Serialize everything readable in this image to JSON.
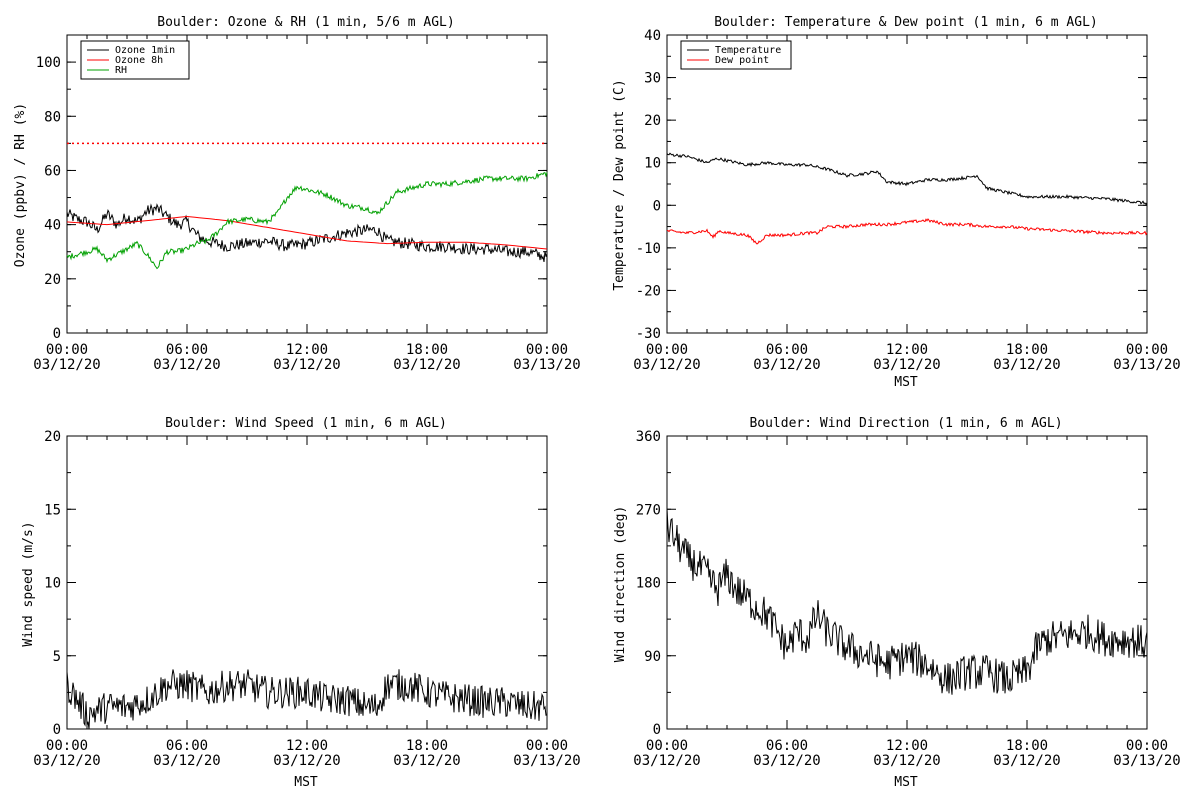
{
  "chart_data": [
    {
      "id": "ozone-rh",
      "type": "line",
      "title": "Boulder: Ozone & RH (1 min, 5/6 m AGL)",
      "ylabel": "Ozone (ppbv) / RH (%)",
      "xlabel": "",
      "ylim": [
        0,
        110
      ],
      "yticks": [
        0,
        20,
        40,
        60,
        80,
        100
      ],
      "xtick_labels": [
        [
          "00:00",
          "03/12/20"
        ],
        [
          "06:00",
          "03/12/20"
        ],
        [
          "12:00",
          "03/12/20"
        ],
        [
          "18:00",
          "03/12/20"
        ],
        [
          "00:00",
          "03/13/20"
        ]
      ],
      "x_hours": [
        0,
        6,
        12,
        18,
        24
      ],
      "grid": false,
      "legend": {
        "placement": "top-left",
        "entries": [
          "Ozone 1min",
          "Ozone 8h",
          "RH"
        ]
      },
      "threshold": {
        "value": 70,
        "color": "#ff0000",
        "style": "dotted"
      },
      "series": [
        {
          "name": "Ozone 1min",
          "color": "#000000",
          "noise": 2.2,
          "x": [
            0,
            0.5,
            1,
            1.5,
            2,
            2.5,
            3,
            3.5,
            4,
            4.5,
            5,
            5.5,
            6,
            6.5,
            7,
            7.5,
            8,
            9,
            10,
            11,
            12,
            13,
            14,
            15,
            15.5,
            16,
            17,
            18,
            19,
            20,
            21,
            22,
            23,
            24
          ],
          "y": [
            44,
            42,
            41,
            38,
            44,
            40,
            43,
            41,
            45,
            46,
            43,
            40,
            41,
            36,
            34,
            33,
            32,
            33,
            34,
            32,
            33,
            35,
            37,
            38,
            38,
            34,
            33,
            32,
            32,
            31,
            31,
            30,
            30,
            28
          ]
        },
        {
          "name": "Ozone 8h",
          "color": "#ff0000",
          "noise": 0,
          "x": [
            0,
            2,
            4,
            6,
            8,
            10,
            12,
            14,
            16,
            18,
            20,
            22,
            24
          ],
          "y": [
            41,
            40,
            41.5,
            43,
            41.5,
            39,
            36.5,
            34,
            33,
            33.5,
            33.5,
            32.5,
            31
          ]
        },
        {
          "name": "RH",
          "color": "#00a000",
          "noise": 1.0,
          "x": [
            0,
            0.5,
            1,
            1.5,
            2,
            2.5,
            3,
            3.5,
            4,
            4.5,
            5,
            5.5,
            6,
            6.5,
            7,
            7.5,
            8,
            9,
            10,
            10.5,
            11,
            11.5,
            12,
            13,
            14,
            15,
            15.5,
            16,
            16.5,
            17,
            18,
            19,
            20,
            21,
            22,
            23,
            23.5,
            24
          ],
          "y": [
            28,
            29,
            30,
            31,
            27,
            29,
            31,
            33,
            29,
            24,
            30,
            30,
            31,
            33,
            34,
            37,
            41,
            42,
            41,
            44,
            50,
            54,
            53,
            51,
            47,
            46,
            44,
            48,
            52,
            53,
            55,
            55,
            56,
            57,
            57,
            57,
            58,
            59
          ]
        }
      ]
    },
    {
      "id": "temp-dew",
      "type": "line",
      "title": "Boulder: Temperature & Dew point (1 min, 6 m AGL)",
      "ylabel": "Temperature / Dew point (C)",
      "xlabel": "MST",
      "ylim": [
        -30,
        40
      ],
      "yticks": [
        -30,
        -20,
        -10,
        0,
        10,
        20,
        30,
        40
      ],
      "xtick_labels": [
        [
          "00:00",
          "03/12/20"
        ],
        [
          "06:00",
          "03/12/20"
        ],
        [
          "12:00",
          "03/12/20"
        ],
        [
          "18:00",
          "03/12/20"
        ],
        [
          "00:00",
          "03/13/20"
        ]
      ],
      "x_hours": [
        0,
        6,
        12,
        18,
        24
      ],
      "grid": false,
      "legend": {
        "placement": "top-left",
        "entries": [
          "Temperature",
          "Dew point"
        ]
      },
      "series": [
        {
          "name": "Temperature",
          "color": "#000000",
          "noise": 0.35,
          "x": [
            0,
            1,
            2,
            2.5,
            3,
            4,
            5,
            6,
            7,
            7.5,
            8,
            9,
            10,
            10.5,
            11,
            12,
            13,
            14,
            15,
            15.5,
            16,
            17,
            18,
            20,
            22,
            23,
            24
          ],
          "y": [
            12,
            11.5,
            10,
            11,
            10.5,
            9.5,
            10,
            9.5,
            9.5,
            9,
            8.5,
            7,
            7.5,
            8,
            5.5,
            5,
            6,
            6,
            6.5,
            7,
            4,
            3,
            2,
            2,
            1.5,
            1,
            0.5
          ]
        },
        {
          "name": "Dew point",
          "color": "#ff0000",
          "noise": 0.35,
          "x": [
            0,
            1,
            2,
            2.3,
            2.6,
            3,
            4,
            4.5,
            5,
            6,
            7,
            7.5,
            8,
            9,
            10,
            11,
            12,
            13,
            14,
            15,
            16,
            17,
            18,
            20,
            22,
            24
          ],
          "y": [
            -6,
            -6.5,
            -6,
            -7.5,
            -6,
            -6.5,
            -7,
            -9,
            -7,
            -7,
            -6.5,
            -6.5,
            -5,
            -5,
            -4.5,
            -4.5,
            -4,
            -3.5,
            -4.5,
            -4.5,
            -5,
            -5,
            -5.5,
            -6,
            -6.5,
            -6.5
          ]
        }
      ]
    },
    {
      "id": "wind-speed",
      "type": "line",
      "title": "Boulder: Wind Speed (1 min, 6 m AGL)",
      "ylabel": "Wind speed (m/s)",
      "xlabel": "MST",
      "ylim": [
        0,
        20
      ],
      "yticks": [
        0,
        5,
        10,
        15,
        20
      ],
      "xtick_labels": [
        [
          "00:00",
          "03/12/20"
        ],
        [
          "06:00",
          "03/12/20"
        ],
        [
          "12:00",
          "03/12/20"
        ],
        [
          "18:00",
          "03/12/20"
        ],
        [
          "00:00",
          "03/13/20"
        ]
      ],
      "x_hours": [
        0,
        6,
        12,
        18,
        24
      ],
      "grid": false,
      "series": [
        {
          "name": "",
          "color": "#000000",
          "noise": 1.1,
          "x": [
            0,
            0.5,
            1,
            2,
            3,
            4,
            5,
            6,
            7,
            8,
            9,
            10,
            11,
            12,
            13,
            14,
            15,
            15.5,
            16,
            17,
            18,
            19,
            20,
            21,
            22,
            23,
            24
          ],
          "y": [
            3,
            2,
            1,
            1.5,
            1.5,
            2,
            3,
            3,
            2.5,
            3,
            3,
            2.5,
            2.5,
            2.5,
            2,
            2,
            1.5,
            1.5,
            3,
            3,
            2.5,
            2.2,
            2,
            1.8,
            1.8,
            1.5,
            1.5
          ]
        }
      ]
    },
    {
      "id": "wind-dir",
      "type": "line",
      "title": "Boulder: Wind Direction (1 min, 6 m AGL)",
      "ylabel": "Wind direction (deg)",
      "xlabel": "MST",
      "ylim": [
        0,
        360
      ],
      "yticks": [
        0,
        90,
        180,
        270,
        360
      ],
      "xtick_labels": [
        [
          "00:00",
          "03/12/20"
        ],
        [
          "06:00",
          "03/12/20"
        ],
        [
          "12:00",
          "03/12/20"
        ],
        [
          "18:00",
          "03/12/20"
        ],
        [
          "00:00",
          "03/13/20"
        ]
      ],
      "x_hours": [
        0,
        6,
        12,
        18,
        24
      ],
      "grid": false,
      "series": [
        {
          "name": "",
          "color": "#000000",
          "noise": 22,
          "x": [
            0,
            0.5,
            1,
            1.5,
            2,
            2.5,
            3,
            3.5,
            4,
            4.5,
            5,
            5.5,
            6,
            6.5,
            7,
            7.5,
            8,
            9,
            10,
            11,
            12,
            13,
            14,
            15,
            16,
            17,
            18,
            18.5,
            19,
            20,
            21,
            22,
            23,
            24
          ],
          "y": [
            250,
            230,
            210,
            200,
            190,
            170,
            190,
            170,
            160,
            150,
            140,
            120,
            100,
            120,
            110,
            140,
            120,
            100,
            90,
            80,
            90,
            80,
            60,
            70,
            70,
            60,
            70,
            100,
            110,
            115,
            120,
            110,
            110,
            105
          ]
        }
      ]
    }
  ]
}
